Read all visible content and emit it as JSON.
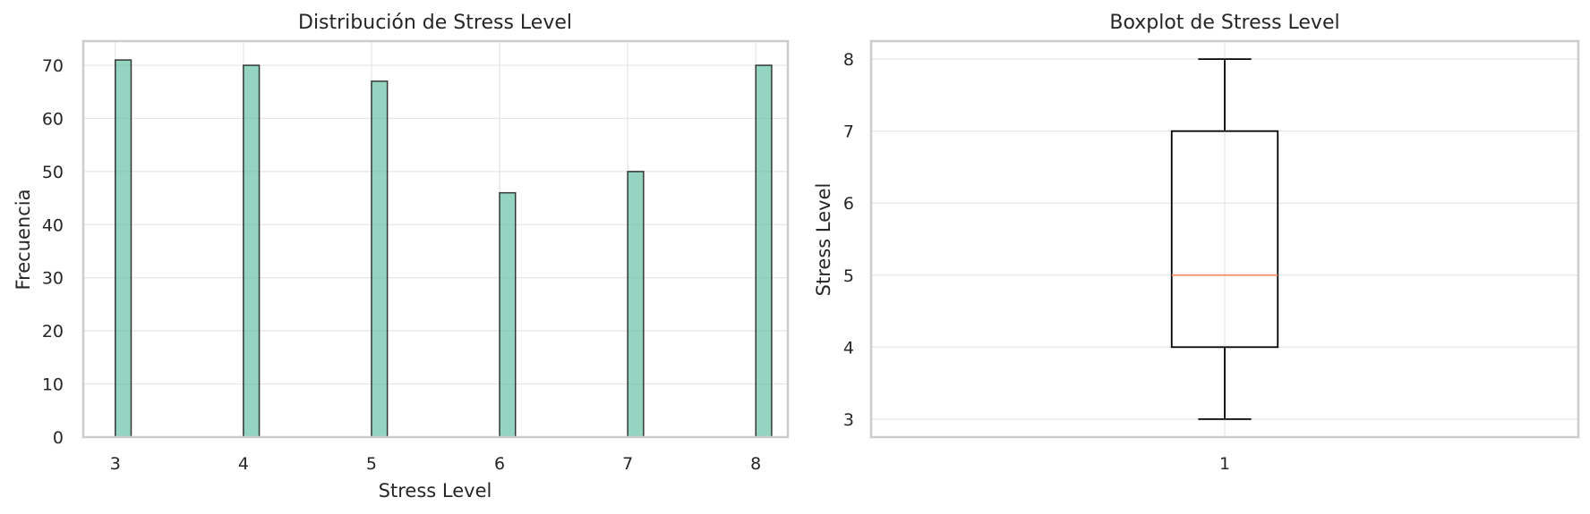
{
  "chart_data": [
    {
      "type": "bar",
      "title": "Distribución de Stress Level",
      "xlabel": "Stress Level",
      "ylabel": "Frecuencia",
      "categories": [
        3,
        4,
        5,
        6,
        7,
        8
      ],
      "values": [
        71,
        70,
        67,
        46,
        50,
        70
      ],
      "xlim": [
        2.75,
        8.25
      ],
      "ylim": [
        0,
        74.55
      ],
      "xticks": [
        3,
        4,
        5,
        6,
        7,
        8
      ],
      "yticks": [
        0,
        10,
        20,
        30,
        40,
        50,
        60,
        70
      ],
      "grid": true,
      "bar_color": "#66c2a5"
    },
    {
      "type": "boxplot",
      "title": "Boxplot de Stress Level",
      "xlabel": "",
      "ylabel": "Stress Level",
      "categories": [
        "1"
      ],
      "stats": {
        "min": 3,
        "q1": 4,
        "median": 5,
        "q3": 7,
        "max": 8
      },
      "ylim": [
        2.75,
        8.25
      ],
      "yticks": [
        3,
        4,
        5,
        6,
        7,
        8
      ],
      "grid": true,
      "median_color": "#fc8d62"
    }
  ]
}
